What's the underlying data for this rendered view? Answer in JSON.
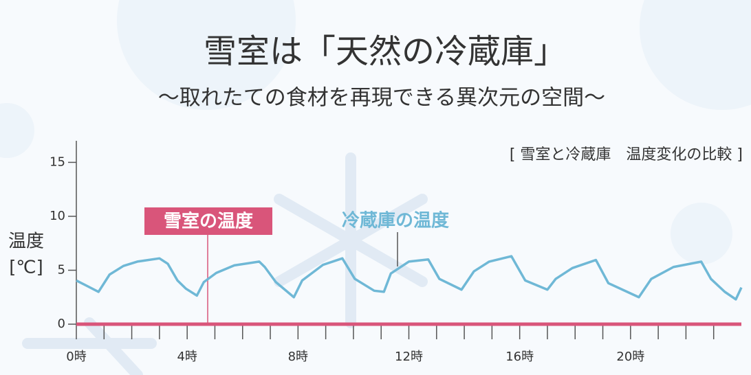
{
  "chart_data": {
    "type": "line",
    "title": "雪室は「天然の冷蔵庫」",
    "subtitle": "～取れたての食材を再現できる異次元の空間～",
    "chart_caption": "[ 雪室と冷蔵庫　温度変化の比較 ]",
    "y_label": "温度",
    "y_unit": "[℃]",
    "xlim": [
      0,
      24
    ],
    "ylim": [
      0,
      17
    ],
    "xticks": [
      {
        "value": 0,
        "label": "0時"
      },
      {
        "value": 4,
        "label": "4時"
      },
      {
        "value": 8,
        "label": "8時"
      },
      {
        "value": 12,
        "label": "12時"
      },
      {
        "value": 16,
        "label": "16時"
      },
      {
        "value": 20,
        "label": "20時"
      }
    ],
    "xminorticks": [
      1,
      2,
      3,
      5,
      6,
      7,
      9,
      10,
      11,
      13,
      14,
      15,
      17,
      18,
      19,
      21,
      22,
      23
    ],
    "yticks": [
      0,
      5,
      10,
      15
    ],
    "series": [
      {
        "name": "雪室の温度",
        "color": "#d9557a",
        "x": [
          0,
          24
        ],
        "values": [
          0,
          0
        ]
      },
      {
        "name": "冷蔵庫の温度",
        "color": "#6fb8d6",
        "x": [
          0,
          0.8,
          1.2,
          1.7,
          2.2,
          3.0,
          3.3,
          3.65,
          3.95,
          4.35,
          4.6,
          5.05,
          5.7,
          6.6,
          6.8,
          7.2,
          7.85,
          8.15,
          8.9,
          9.6,
          10.05,
          10.75,
          11.1,
          11.35,
          12.0,
          12.7,
          13.1,
          13.9,
          14.35,
          14.9,
          15.7,
          16.2,
          17.0,
          17.3,
          17.9,
          18.35,
          18.75,
          19.2,
          20.3,
          20.75,
          21.55,
          22.55,
          22.9,
          23.4,
          23.8,
          24
        ],
        "values": [
          4.05,
          3.0,
          4.6,
          5.4,
          5.8,
          6.1,
          5.6,
          4.05,
          3.3,
          2.65,
          3.9,
          4.75,
          5.45,
          5.8,
          5.3,
          3.9,
          2.5,
          4.05,
          5.5,
          6.1,
          4.2,
          3.1,
          3.0,
          4.7,
          5.8,
          6.0,
          4.2,
          3.2,
          4.9,
          5.8,
          6.3,
          4.05,
          3.2,
          4.2,
          5.2,
          5.6,
          5.95,
          3.8,
          2.5,
          4.2,
          5.3,
          5.8,
          4.2,
          3.0,
          2.3,
          3.4
        ]
      }
    ]
  }
}
